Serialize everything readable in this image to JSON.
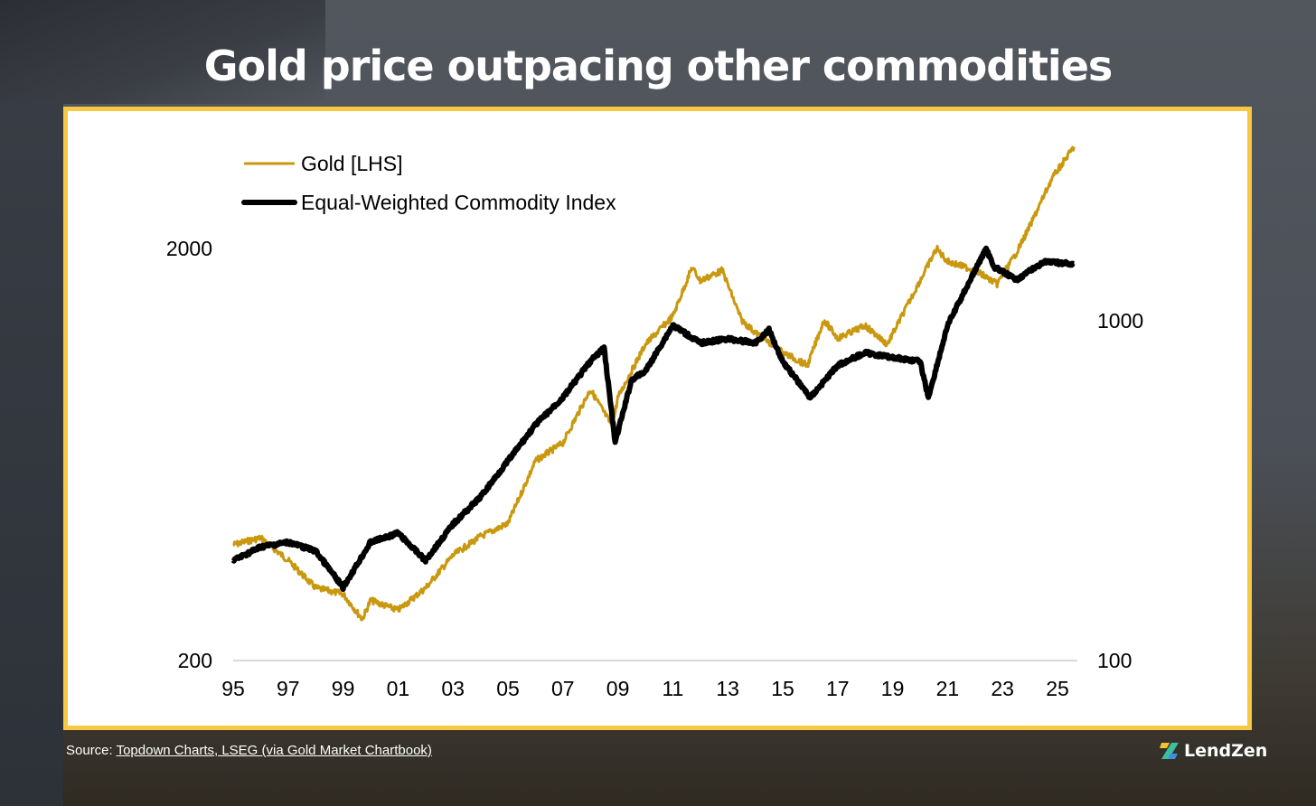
{
  "title": "Gold price outpacing other commodities",
  "source": {
    "prefix": "Source: ",
    "link": "Topdown Charts, LSEG (via Gold Market Chartbook)"
  },
  "brand": {
    "name": "LendZen"
  },
  "colors": {
    "gold": "#c9980f",
    "index": "#000000",
    "frame": "#f7c843"
  },
  "chart_data": {
    "type": "line",
    "title": "Gold price outpacing other commodities",
    "x_ticks": [
      "95",
      "97",
      "99",
      "01",
      "03",
      "05",
      "07",
      "09",
      "11",
      "13",
      "15",
      "17",
      "19",
      "21",
      "23",
      "25"
    ],
    "x_tick_values": [
      1995,
      1997,
      1999,
      2001,
      2003,
      2005,
      2007,
      2009,
      2011,
      2013,
      2015,
      2017,
      2019,
      2021,
      2023,
      2025
    ],
    "xlim": [
      1995,
      2025.7
    ],
    "y_left": {
      "scale": "log",
      "range": [
        200,
        3600
      ],
      "ticks": [
        {
          "label": "2000",
          "value": 2000
        },
        {
          "label": "200",
          "value": 200
        }
      ]
    },
    "y_right": {
      "scale": "log",
      "range": [
        100,
        2500
      ],
      "ticks": [
        {
          "label": "1000",
          "value": 1000
        },
        {
          "label": "100",
          "value": 100
        }
      ]
    },
    "legend_position": "top-left",
    "series": [
      {
        "name": "Gold [LHS]",
        "axis": "left",
        "color": "#c9980f",
        "x": [
          1995,
          1996,
          1997,
          1998,
          1999,
          1999.7,
          2000,
          2001,
          2002,
          2003,
          2004,
          2005,
          2006,
          2007,
          2008,
          2008.8,
          2009,
          2010,
          2011,
          2011.7,
          2012,
          2012.8,
          2013.5,
          2014,
          2015,
          2015.9,
          2016.5,
          2017,
          2018,
          2018.8,
          2019.5,
          2020.6,
          2021,
          2022,
          2022.8,
          2023.5,
          2024,
          2024.8,
          2025.6
        ],
        "y": [
          382,
          397,
          350,
          300,
          290,
          252,
          280,
          265,
          300,
          360,
          400,
          430,
          610,
          675,
          910,
          740,
          870,
          1170,
          1370,
          1800,
          1670,
          1770,
          1340,
          1250,
          1120,
          1040,
          1340,
          1210,
          1300,
          1170,
          1440,
          2000,
          1860,
          1770,
          1640,
          1950,
          2270,
          2960,
          3530
        ]
      },
      {
        "name": "Equal-Weighted Commodity Index",
        "axis": "right",
        "color": "#000000",
        "x": [
          1995,
          1996,
          1997,
          1998,
          1999,
          2000,
          2001,
          2002,
          2003,
          2004,
          2005,
          2006,
          2007,
          2008,
          2008.5,
          2008.9,
          2009.5,
          2010,
          2011,
          2012,
          2013,
          2014,
          2014.5,
          2015,
          2016,
          2017,
          2018,
          2019,
          2020,
          2020.3,
          2021,
          2021.5,
          2022.4,
          2022.7,
          2023.5,
          2024.5,
          2025.6
        ],
        "y": [
          197,
          216,
          223,
          210,
          164,
          223,
          237,
          197,
          252,
          303,
          387,
          494,
          594,
          760,
          832,
          438,
          670,
          710,
          970,
          860,
          885,
          860,
          940,
          760,
          594,
          740,
          805,
          780,
          760,
          594,
          970,
          1170,
          1630,
          1440,
          1320,
          1490,
          1470
        ]
      }
    ]
  }
}
